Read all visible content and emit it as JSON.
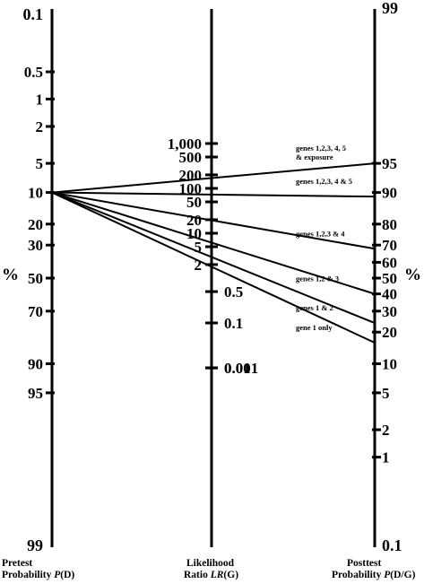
{
  "chart_data": {
    "type": "nomogram",
    "units_label": "%",
    "axes": {
      "pretest": {
        "label_line1": "Pretest",
        "label_line2_prefix": "Probability ",
        "label_var": "P",
        "label_arg": "(D)",
        "ticks": [
          0.1,
          0.5,
          1,
          2,
          5,
          10,
          20,
          30,
          50,
          70,
          90,
          95,
          99
        ]
      },
      "likelihood_ratio": {
        "label_line1": "Likelihood",
        "label_line2_prefix": "Ratio ",
        "label_var": "LR",
        "label_arg": "(G)",
        "ticks": [
          {
            "value": 1000,
            "text": "1,000"
          },
          {
            "value": 500,
            "text": "500"
          },
          {
            "value": 200,
            "text": "200"
          },
          {
            "value": 100,
            "text": "100"
          },
          {
            "value": 50,
            "text": "50"
          },
          {
            "value": 20,
            "text": "20"
          },
          {
            "value": 10,
            "text": "10"
          },
          {
            "value": 5,
            "text": "5"
          },
          {
            "value": 2,
            "text": "2"
          },
          {
            "value": 0.5,
            "text": "0.5"
          },
          {
            "value": 0.1,
            "text": "0.1"
          },
          {
            "value": 0.01,
            "text": "0.01"
          },
          {
            "value": 0.001,
            "text": "0.001"
          }
        ]
      },
      "posttest": {
        "label_line1": "Posttest",
        "label_line2_prefix": "Probability ",
        "label_var": "P",
        "label_arg": "(D/G)",
        "ticks": [
          99,
          95,
          90,
          80,
          70,
          60,
          50,
          40,
          30,
          20,
          10,
          5,
          2,
          1,
          0.1
        ]
      }
    },
    "pretest_probability": 10,
    "lines": [
      {
        "label": "genes 1,2,3, 4, 5",
        "label2": "& exposure",
        "posttest": 95
      },
      {
        "label": "genes 1,2,3, 4 & 5",
        "label2": "",
        "posttest": 89
      },
      {
        "label": "genes 1,2,3 & 4",
        "label2": "",
        "posttest": 68
      },
      {
        "label": "genes 1,2 & 3",
        "label2": "",
        "posttest": 40
      },
      {
        "label": "genes 1 & 2",
        "label2": "",
        "posttest": 24
      },
      {
        "label": "gene 1 only",
        "label2": "",
        "posttest": 16
      }
    ]
  }
}
